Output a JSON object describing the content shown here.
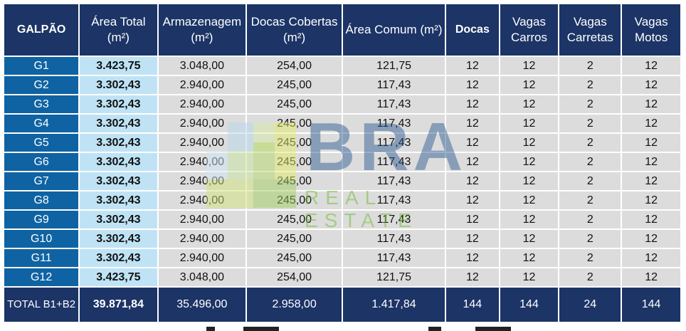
{
  "headers": [
    "GALPÃO",
    "Área Total (m²)",
    "Armazenagem (m²)",
    "Docas Cobertas (m²)",
    "Área Comum (m²)",
    "Docas",
    "Vagas Carros",
    "Vagas Carretas",
    "Vagas Motos"
  ],
  "rows": [
    [
      "G1",
      "3.423,75",
      "3.048,00",
      "254,00",
      "121,75",
      "12",
      "12",
      "2",
      "12"
    ],
    [
      "G2",
      "3.302,43",
      "2.940,00",
      "245,00",
      "117,43",
      "12",
      "12",
      "2",
      "12"
    ],
    [
      "G3",
      "3.302,43",
      "2.940,00",
      "245,00",
      "117,43",
      "12",
      "12",
      "2",
      "12"
    ],
    [
      "G4",
      "3.302,43",
      "2.940,00",
      "245,00",
      "117,43",
      "12",
      "12",
      "2",
      "12"
    ],
    [
      "G5",
      "3.302,43",
      "2.940,00",
      "245,00",
      "117,43",
      "12",
      "12",
      "2",
      "12"
    ],
    [
      "G6",
      "3.302,43",
      "2.940,00",
      "245,00",
      "117,43",
      "12",
      "12",
      "2",
      "12"
    ],
    [
      "G7",
      "3.302,43",
      "2.940,00",
      "245,00",
      "117,43",
      "12",
      "12",
      "2",
      "12"
    ],
    [
      "G8",
      "3.302,43",
      "2.940,00",
      "245,00",
      "117,43",
      "12",
      "12",
      "2",
      "12"
    ],
    [
      "G9",
      "3.302,43",
      "2.940,00",
      "245,00",
      "117,43",
      "12",
      "12",
      "2",
      "12"
    ],
    [
      "G10",
      "3.302,43",
      "2.940,00",
      "245,00",
      "117,43",
      "12",
      "12",
      "2",
      "12"
    ],
    [
      "G11",
      "3.302,43",
      "2.940,00",
      "245,00",
      "117,43",
      "12",
      "12",
      "2",
      "12"
    ],
    [
      "G12",
      "3.423,75",
      "3.048,00",
      "254,00",
      "121,75",
      "12",
      "12",
      "2",
      "12"
    ]
  ],
  "total": [
    "TOTAL B1+B2",
    "39.871,84",
    "35.496,00",
    "2.958,00",
    "1.417,84",
    "144",
    "144",
    "24",
    "144"
  ],
  "watermark": {
    "word": "BRA",
    "sub": "REAL ESTATE"
  },
  "colors": {
    "header_bg": "#1c3466",
    "label_bg": "#0f63a3",
    "total_col_bg": "#bfe3f5",
    "cell_bg": "#dcdcdc"
  }
}
